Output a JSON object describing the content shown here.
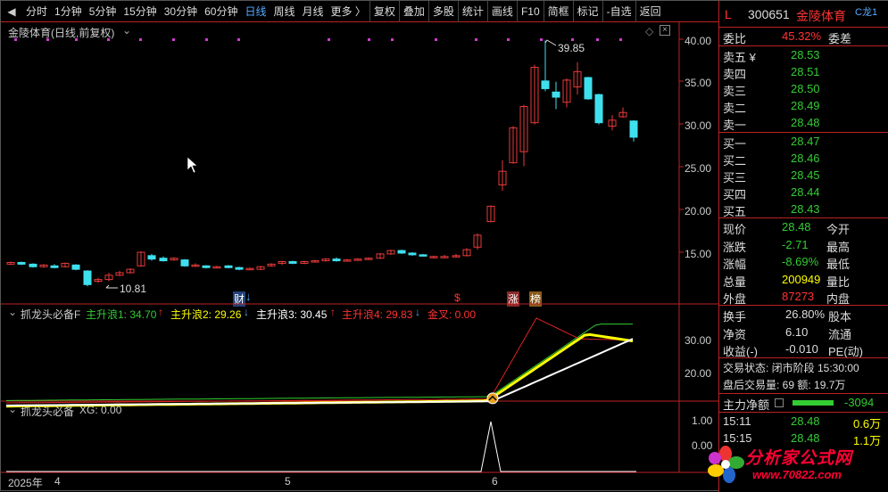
{
  "toolbar": {
    "periods": [
      "分时",
      "1分钟",
      "5分钟",
      "15分钟",
      "30分钟",
      "60分钟",
      "日线",
      "周线",
      "月线",
      "更多 〉"
    ],
    "active_period": "日线",
    "tools": [
      "复权",
      "叠加",
      "多股",
      "统计",
      "画线",
      "F10",
      "简框",
      "标记",
      "-自选",
      "返回"
    ]
  },
  "main_chart": {
    "title": "金陵体育(日线,前复权)",
    "high_label": "39.85",
    "low_label": "10.81",
    "y_ticks": [
      "40.00",
      "35.00",
      "30.00",
      "25.00",
      "20.00",
      "15.00"
    ],
    "markers": {
      "cai": "财",
      "zhang": "涨",
      "bang": "榜",
      "dollar": "$"
    },
    "colors": {
      "up": "#e83a3a",
      "down": "#3fe0ee",
      "marker": "#d23ad2"
    }
  },
  "indicator1": {
    "name": "抓龙头必备F",
    "lines": [
      {
        "label": "主升浪1: 34.70",
        "arrow": "↑",
        "color": "#3c3"
      },
      {
        "label": "主升浪2: 29.26",
        "arrow": "↓",
        "color": "#ff0"
      },
      {
        "label": "主升浪3: 30.45",
        "arrow": "↑",
        "color": "#ffffff"
      },
      {
        "label": "主升浪4: 29.83",
        "arrow": "↓",
        "color": "#f33"
      },
      {
        "label": "金叉: 0.00",
        "arrow": "",
        "color": "#f33"
      }
    ],
    "y_ticks": [
      "30.00",
      "20.00"
    ]
  },
  "indicator2": {
    "name": "抓龙头必备",
    "value_label": "XG: 0.00",
    "y_ticks": [
      "1.00",
      "0.00"
    ]
  },
  "x_axis": {
    "labels": [
      "2025年",
      "4",
      "5",
      "6"
    ]
  },
  "quote": {
    "flag": "L",
    "code": "300651",
    "name": "金陵体育",
    "tag": "C龙1",
    "weibi_label": "委比",
    "weibi_value": "45.32%",
    "weicha_label": "委差",
    "sell": [
      {
        "label": "卖五 ¥",
        "price": "28.53"
      },
      {
        "label": "卖四",
        "price": "28.51"
      },
      {
        "label": "卖三",
        "price": "28.50"
      },
      {
        "label": "卖二",
        "price": "28.49"
      },
      {
        "label": "卖一",
        "price": "28.48"
      }
    ],
    "buy": [
      {
        "label": "买一",
        "price": "28.47"
      },
      {
        "label": "买二",
        "price": "28.46"
      },
      {
        "label": "买三",
        "price": "28.45"
      },
      {
        "label": "买四",
        "price": "28.44"
      },
      {
        "label": "买五",
        "price": "28.43"
      }
    ],
    "stats": [
      {
        "label": "现价",
        "value": "28.48",
        "cls": "g",
        "right": "今开"
      },
      {
        "label": "涨跌",
        "value": "-2.71",
        "cls": "g",
        "right": "最高"
      },
      {
        "label": "涨幅",
        "value": "-8.69%",
        "cls": "g",
        "right": "最低"
      },
      {
        "label": "总量",
        "value": "200949",
        "cls": "y",
        "right": "量比"
      },
      {
        "label": "外盘",
        "value": "87273",
        "cls": "r",
        "right": "内盘"
      }
    ],
    "stats2": [
      {
        "label": "换手",
        "value": "26.80%",
        "cls": "w",
        "right": "股本"
      },
      {
        "label": "净资",
        "value": "6.10",
        "cls": "w",
        "right": "流通"
      },
      {
        "label": "收益(-)",
        "value": "-0.010",
        "cls": "w",
        "right": "PE(动)"
      }
    ],
    "status1": "交易状态: 闭市阶段 15:30:00",
    "status2": "盘后交易量: 69  额: 19.7万",
    "main_flow_label": "主力净额",
    "main_flow_value": "-3094",
    "ticks": [
      {
        "time": "15:11",
        "price": "28.48",
        "vol": "0.6万"
      },
      {
        "time": "15:15",
        "price": "28.48",
        "vol": "1.1万"
      }
    ]
  },
  "watermark": {
    "text": "分析家公式网",
    "url": "www.70822.com"
  }
}
